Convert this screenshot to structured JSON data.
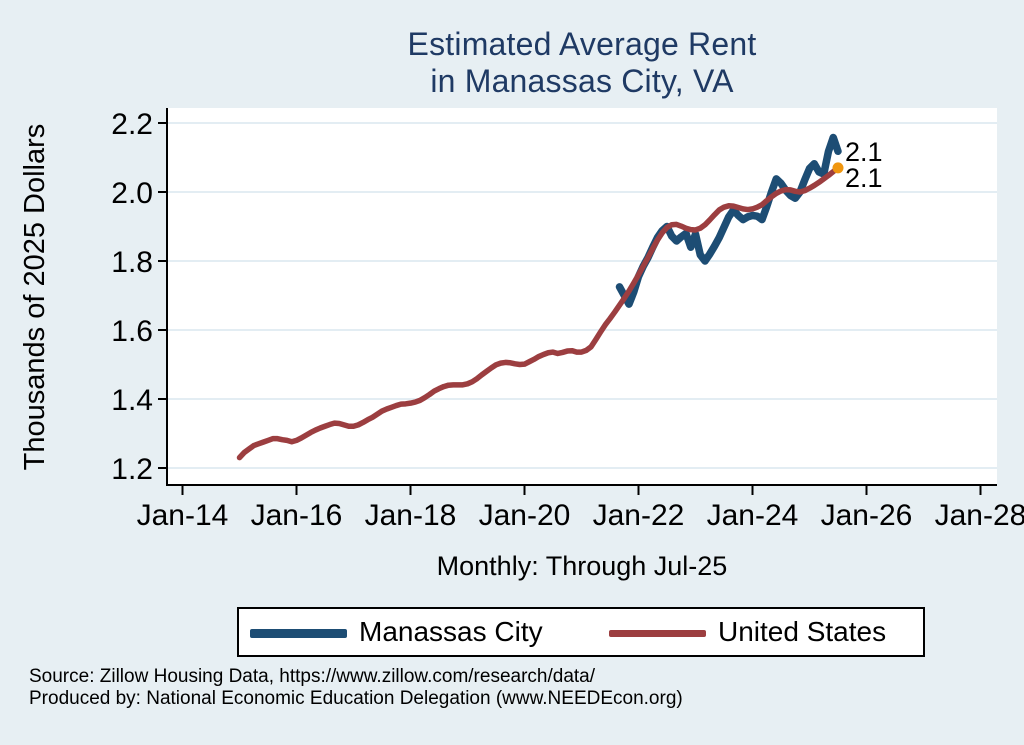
{
  "title": {
    "line1": "Estimated Average Rent",
    "line2": "in Manassas City, VA",
    "color": "#1f3a64"
  },
  "subtitle": "Monthly: Through Jul-25",
  "axes": {
    "y_title": "Thousands of 2025 Dollars",
    "y_tick_labels": [
      "2.2",
      "2.0",
      "1.8",
      "1.6",
      "1.4",
      "1.2"
    ],
    "x_tick_labels": [
      "Jan-14",
      "Jan-16",
      "Jan-18",
      "Jan-20",
      "Jan-22",
      "Jan-24",
      "Jan-26",
      "Jan-28"
    ]
  },
  "legend": {
    "items": [
      {
        "label": "Manassas City",
        "color": "#1d4d74"
      },
      {
        "label": "United States",
        "color": "#9c3e40"
      }
    ]
  },
  "source": {
    "line1": "Source: Zillow Housing Data, https://www.zillow.com/research/data/",
    "line2": "Produced by: National Economic Education Delegation (www.NEEDEcon.org)"
  },
  "colors": {
    "page_background": "#e7eff3",
    "plot_background": "#ffffff",
    "gridline": "#e3edf3",
    "axis": "#000000",
    "end_marker": "#f0960f",
    "end_label_text": "#000000"
  },
  "chart_data": {
    "type": "line",
    "title": "Estimated Average Rent in Manassas City, VA",
    "xlabel": "Monthly: Through Jul-25",
    "ylabel": "Thousands of 2025 Dollars",
    "ylim": [
      1.2,
      2.2
    ],
    "grid": true,
    "legend_position": "bottom",
    "y_ticks": [
      {
        "label": "2.2",
        "value": 2.2
      },
      {
        "label": "2.0",
        "value": 2.0
      },
      {
        "label": "1.8",
        "value": 1.8
      },
      {
        "label": "1.6",
        "value": 1.6
      },
      {
        "label": "1.4",
        "value": 1.4
      },
      {
        "label": "1.2",
        "value": 1.2
      }
    ],
    "x_ticks": [
      {
        "label": "Jan-14",
        "month": "2014-01"
      },
      {
        "label": "Jan-16",
        "month": "2016-01"
      },
      {
        "label": "Jan-18",
        "month": "2018-01"
      },
      {
        "label": "Jan-20",
        "month": "2020-01"
      },
      {
        "label": "Jan-22",
        "month": "2022-01"
      },
      {
        "label": "Jan-24",
        "month": "2024-01"
      },
      {
        "label": "Jan-26",
        "month": "2026-01"
      },
      {
        "label": "Jan-28",
        "month": "2028-01"
      }
    ],
    "series": [
      {
        "name": "Manassas City",
        "color": "#1d4d74",
        "stroke_width": 7.5,
        "frequency": "monthly",
        "start": "2021-09",
        "end": "2025-07",
        "end_label": "2.1",
        "end_marker": false,
        "values": [
          1.725,
          1.7,
          1.675,
          1.71,
          1.755,
          1.785,
          1.81,
          1.84,
          1.868,
          1.888,
          1.9,
          1.872,
          1.858,
          1.87,
          1.88,
          1.84,
          1.878,
          1.818,
          1.8,
          1.82,
          1.843,
          1.868,
          1.898,
          1.928,
          1.948,
          1.932,
          1.92,
          1.928,
          1.932,
          1.93,
          1.92,
          1.958,
          2.0,
          2.038,
          2.025,
          2.005,
          1.99,
          1.982,
          2.0,
          2.035,
          2.068,
          2.082,
          2.058,
          2.052,
          2.118,
          2.158,
          2.118
        ]
      },
      {
        "name": "United States",
        "color": "#9c3e40",
        "stroke_width": 5.5,
        "frequency": "monthly",
        "start": "2015-01",
        "end": "2025-07",
        "end_label": "2.1",
        "end_marker": true,
        "values": [
          1.23,
          1.245,
          1.255,
          1.265,
          1.27,
          1.275,
          1.28,
          1.285,
          1.285,
          1.282,
          1.28,
          1.276,
          1.28,
          1.287,
          1.295,
          1.303,
          1.31,
          1.316,
          1.321,
          1.326,
          1.33,
          1.329,
          1.325,
          1.321,
          1.321,
          1.325,
          1.332,
          1.34,
          1.347,
          1.356,
          1.365,
          1.371,
          1.376,
          1.381,
          1.385,
          1.386,
          1.388,
          1.391,
          1.396,
          1.404,
          1.413,
          1.423,
          1.43,
          1.436,
          1.44,
          1.441,
          1.441,
          1.441,
          1.444,
          1.45,
          1.459,
          1.47,
          1.48,
          1.49,
          1.499,
          1.504,
          1.506,
          1.505,
          1.502,
          1.5,
          1.501,
          1.508,
          1.515,
          1.523,
          1.529,
          1.534,
          1.536,
          1.532,
          1.535,
          1.539,
          1.54,
          1.536,
          1.536,
          1.541,
          1.551,
          1.572,
          1.594,
          1.615,
          1.633,
          1.652,
          1.672,
          1.692,
          1.713,
          1.736,
          1.76,
          1.785,
          1.81,
          1.836,
          1.861,
          1.882,
          1.897,
          1.905,
          1.906,
          1.901,
          1.895,
          1.891,
          1.89,
          1.895,
          1.905,
          1.919,
          1.934,
          1.948,
          1.956,
          1.96,
          1.959,
          1.955,
          1.951,
          1.949,
          1.951,
          1.956,
          1.963,
          1.975,
          1.986,
          1.996,
          2.003,
          2.007,
          2.006,
          2.002,
          2.0,
          2.004,
          2.011,
          2.019,
          2.028,
          2.038,
          2.048,
          2.059,
          2.07
        ]
      }
    ]
  }
}
